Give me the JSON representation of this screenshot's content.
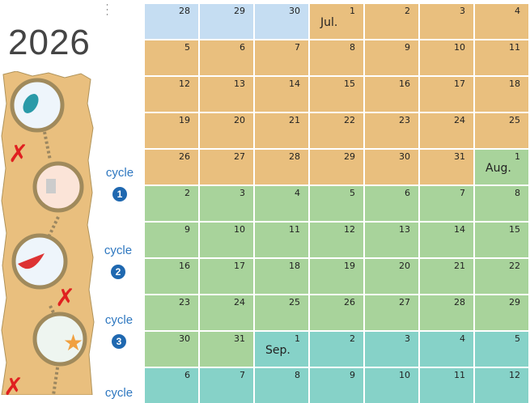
{
  "year": "2026",
  "colors": {
    "june": "#c5ddf2",
    "july": "#e9bf7e",
    "august": "#a8d39b",
    "september": "#86d2c8"
  },
  "cycles": [
    {
      "label": "cycle",
      "number": "1"
    },
    {
      "label": "cycle",
      "number": "2"
    },
    {
      "label": "cycle",
      "number": "3"
    },
    {
      "label": "cycle",
      "number": ""
    }
  ],
  "calendar": [
    [
      [
        "28",
        "june"
      ],
      [
        "29",
        "june"
      ],
      [
        "30",
        "june"
      ],
      [
        "1",
        "july",
        "Jul."
      ],
      [
        "2",
        "july"
      ],
      [
        "3",
        "july"
      ],
      [
        "4",
        "july"
      ]
    ],
    [
      [
        "5",
        "july"
      ],
      [
        "6",
        "july"
      ],
      [
        "7",
        "july"
      ],
      [
        "8",
        "july"
      ],
      [
        "9",
        "july"
      ],
      [
        "10",
        "july"
      ],
      [
        "11",
        "july"
      ]
    ],
    [
      [
        "12",
        "july"
      ],
      [
        "13",
        "july"
      ],
      [
        "14",
        "july"
      ],
      [
        "15",
        "july"
      ],
      [
        "16",
        "july"
      ],
      [
        "17",
        "july"
      ],
      [
        "18",
        "july"
      ]
    ],
    [
      [
        "19",
        "july"
      ],
      [
        "20",
        "july"
      ],
      [
        "21",
        "july"
      ],
      [
        "22",
        "july"
      ],
      [
        "23",
        "july"
      ],
      [
        "24",
        "july"
      ],
      [
        "25",
        "july"
      ]
    ],
    [
      [
        "26",
        "july"
      ],
      [
        "27",
        "july"
      ],
      [
        "28",
        "july"
      ],
      [
        "29",
        "july"
      ],
      [
        "30",
        "july"
      ],
      [
        "31",
        "july"
      ],
      [
        "1",
        "august",
        "Aug."
      ]
    ],
    [
      [
        "2",
        "august"
      ],
      [
        "3",
        "august"
      ],
      [
        "4",
        "august"
      ],
      [
        "5",
        "august"
      ],
      [
        "6",
        "august"
      ],
      [
        "7",
        "august"
      ],
      [
        "8",
        "august"
      ]
    ],
    [
      [
        "9",
        "august"
      ],
      [
        "10",
        "august"
      ],
      [
        "11",
        "august"
      ],
      [
        "12",
        "august"
      ],
      [
        "13",
        "august"
      ],
      [
        "14",
        "august"
      ],
      [
        "15",
        "august"
      ]
    ],
    [
      [
        "16",
        "august"
      ],
      [
        "17",
        "august"
      ],
      [
        "18",
        "august"
      ],
      [
        "19",
        "august"
      ],
      [
        "20",
        "august"
      ],
      [
        "21",
        "august"
      ],
      [
        "22",
        "august"
      ]
    ],
    [
      [
        "23",
        "august"
      ],
      [
        "24",
        "august"
      ],
      [
        "25",
        "august"
      ],
      [
        "26",
        "august"
      ],
      [
        "27",
        "august"
      ],
      [
        "28",
        "august"
      ],
      [
        "29",
        "august"
      ]
    ],
    [
      [
        "30",
        "august"
      ],
      [
        "31",
        "august"
      ],
      [
        "1",
        "september",
        "Sep."
      ],
      [
        "2",
        "september"
      ],
      [
        "3",
        "september"
      ],
      [
        "4",
        "september"
      ],
      [
        "5",
        "september"
      ]
    ],
    [
      [
        "6",
        "september"
      ],
      [
        "7",
        "september"
      ],
      [
        "8",
        "september"
      ],
      [
        "9",
        "september"
      ],
      [
        "10",
        "september"
      ],
      [
        "11",
        "september"
      ],
      [
        "12",
        "september"
      ]
    ]
  ]
}
